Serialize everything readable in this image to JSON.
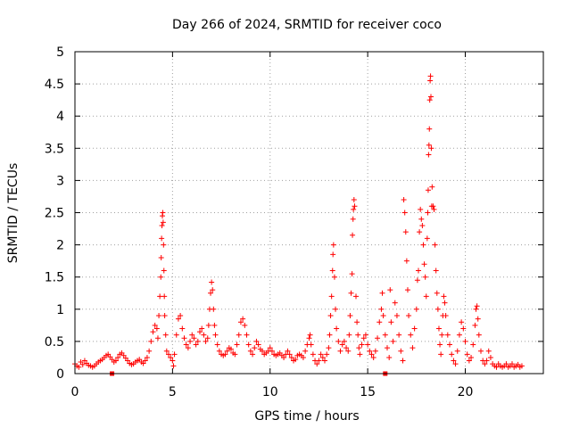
{
  "chart_data": {
    "type": "scatter",
    "title": "Day 266 of 2024, SRMTID for receiver coco",
    "xlabel": "GPS time / hours",
    "ylabel": "SRMTID / TECUs",
    "xlim": [
      0,
      24
    ],
    "ylim": [
      0,
      5
    ],
    "xticks": [
      0,
      5,
      10,
      15,
      20
    ],
    "xtick_labels": [
      "0",
      "5",
      "10",
      "15",
      "20"
    ],
    "yticks": [
      0,
      0.5,
      1,
      1.5,
      2,
      2.5,
      3,
      3.5,
      4,
      4.5,
      5
    ],
    "ytick_labels": [
      "0",
      "0.5",
      "1",
      "1.5",
      "2",
      "2.5",
      "3",
      "3.5",
      "4",
      "4.5",
      "5"
    ],
    "grid": true,
    "marker": "plus",
    "color": "#ff0000",
    "series": [
      {
        "name": "SRMTID",
        "points": [
          [
            0.0,
            0.15
          ],
          [
            0.1,
            0.12
          ],
          [
            0.2,
            0.1
          ],
          [
            0.3,
            0.18
          ],
          [
            0.4,
            0.14
          ],
          [
            0.5,
            0.2
          ],
          [
            0.6,
            0.16
          ],
          [
            0.7,
            0.13
          ],
          [
            0.8,
            0.12
          ],
          [
            0.9,
            0.1
          ],
          [
            1.0,
            0.12
          ],
          [
            1.1,
            0.15
          ],
          [
            1.2,
            0.18
          ],
          [
            1.3,
            0.2
          ],
          [
            1.4,
            0.22
          ],
          [
            1.5,
            0.25
          ],
          [
            1.6,
            0.28
          ],
          [
            1.7,
            0.3
          ],
          [
            1.8,
            0.26
          ],
          [
            1.9,
            0.22
          ],
          [
            2.0,
            0.18
          ],
          [
            2.1,
            0.2
          ],
          [
            2.2,
            0.25
          ],
          [
            2.3,
            0.3
          ],
          [
            2.4,
            0.32
          ],
          [
            2.5,
            0.28
          ],
          [
            2.6,
            0.24
          ],
          [
            2.7,
            0.2
          ],
          [
            2.8,
            0.16
          ],
          [
            2.9,
            0.14
          ],
          [
            3.0,
            0.15
          ],
          [
            3.1,
            0.18
          ],
          [
            3.2,
            0.2
          ],
          [
            3.3,
            0.22
          ],
          [
            3.4,
            0.18
          ],
          [
            3.5,
            0.16
          ],
          [
            3.6,
            0.2
          ],
          [
            3.7,
            0.25
          ],
          [
            3.8,
            0.35
          ],
          [
            3.9,
            0.5
          ],
          [
            4.0,
            0.65
          ],
          [
            4.1,
            0.75
          ],
          [
            4.2,
            0.7
          ],
          [
            4.25,
            0.55
          ],
          [
            4.3,
            0.9
          ],
          [
            4.35,
            1.2
          ],
          [
            4.4,
            1.5
          ],
          [
            4.42,
            1.8
          ],
          [
            4.44,
            2.1
          ],
          [
            4.46,
            2.3
          ],
          [
            4.48,
            2.45
          ],
          [
            4.5,
            2.5
          ],
          [
            4.52,
            2.35
          ],
          [
            4.54,
            2.0
          ],
          [
            4.56,
            1.6
          ],
          [
            4.58,
            1.2
          ],
          [
            4.6,
            0.9
          ],
          [
            4.65,
            0.6
          ],
          [
            4.7,
            0.35
          ],
          [
            4.8,
            0.3
          ],
          [
            4.9,
            0.25
          ],
          [
            5.0,
            0.2
          ],
          [
            5.05,
            0.12
          ],
          [
            5.1,
            0.3
          ],
          [
            5.2,
            0.6
          ],
          [
            5.3,
            0.85
          ],
          [
            5.4,
            0.9
          ],
          [
            5.5,
            0.7
          ],
          [
            5.6,
            0.55
          ],
          [
            5.7,
            0.45
          ],
          [
            5.8,
            0.4
          ],
          [
            5.9,
            0.5
          ],
          [
            6.0,
            0.6
          ],
          [
            6.1,
            0.55
          ],
          [
            6.2,
            0.45
          ],
          [
            6.3,
            0.5
          ],
          [
            6.4,
            0.65
          ],
          [
            6.5,
            0.7
          ],
          [
            6.6,
            0.6
          ],
          [
            6.7,
            0.5
          ],
          [
            6.8,
            0.55
          ],
          [
            6.85,
            0.75
          ],
          [
            6.9,
            1.0
          ],
          [
            6.95,
            1.25
          ],
          [
            7.0,
            1.42
          ],
          [
            7.05,
            1.3
          ],
          [
            7.1,
            1.0
          ],
          [
            7.15,
            0.75
          ],
          [
            7.2,
            0.6
          ],
          [
            7.3,
            0.45
          ],
          [
            7.4,
            0.35
          ],
          [
            7.5,
            0.3
          ],
          [
            7.6,
            0.28
          ],
          [
            7.7,
            0.3
          ],
          [
            7.8,
            0.35
          ],
          [
            7.9,
            0.4
          ],
          [
            8.0,
            0.38
          ],
          [
            8.1,
            0.32
          ],
          [
            8.2,
            0.3
          ],
          [
            8.3,
            0.45
          ],
          [
            8.4,
            0.6
          ],
          [
            8.5,
            0.8
          ],
          [
            8.6,
            0.85
          ],
          [
            8.7,
            0.75
          ],
          [
            8.8,
            0.6
          ],
          [
            8.9,
            0.45
          ],
          [
            9.0,
            0.35
          ],
          [
            9.1,
            0.3
          ],
          [
            9.2,
            0.4
          ],
          [
            9.3,
            0.5
          ],
          [
            9.4,
            0.45
          ],
          [
            9.5,
            0.38
          ],
          [
            9.6,
            0.35
          ],
          [
            9.7,
            0.3
          ],
          [
            9.8,
            0.32
          ],
          [
            9.9,
            0.35
          ],
          [
            10.0,
            0.4
          ],
          [
            10.1,
            0.35
          ],
          [
            10.2,
            0.3
          ],
          [
            10.3,
            0.28
          ],
          [
            10.4,
            0.3
          ],
          [
            10.5,
            0.32
          ],
          [
            10.6,
            0.28
          ],
          [
            10.7,
            0.25
          ],
          [
            10.8,
            0.3
          ],
          [
            10.9,
            0.35
          ],
          [
            11.0,
            0.3
          ],
          [
            11.1,
            0.25
          ],
          [
            11.2,
            0.2
          ],
          [
            11.3,
            0.22
          ],
          [
            11.4,
            0.28
          ],
          [
            11.5,
            0.3
          ],
          [
            11.6,
            0.28
          ],
          [
            11.7,
            0.25
          ],
          [
            11.8,
            0.35
          ],
          [
            11.9,
            0.45
          ],
          [
            12.0,
            0.55
          ],
          [
            12.05,
            0.6
          ],
          [
            12.1,
            0.45
          ],
          [
            12.2,
            0.3
          ],
          [
            12.3,
            0.2
          ],
          [
            12.4,
            0.15
          ],
          [
            12.5,
            0.2
          ],
          [
            12.6,
            0.3
          ],
          [
            12.7,
            0.25
          ],
          [
            12.8,
            0.2
          ],
          [
            12.9,
            0.3
          ],
          [
            13.0,
            0.4
          ],
          [
            13.05,
            0.6
          ],
          [
            13.1,
            0.9
          ],
          [
            13.15,
            1.2
          ],
          [
            13.2,
            1.6
          ],
          [
            13.22,
            1.85
          ],
          [
            13.25,
            2.0
          ],
          [
            13.3,
            1.5
          ],
          [
            13.35,
            1.0
          ],
          [
            13.4,
            0.7
          ],
          [
            13.5,
            0.5
          ],
          [
            13.6,
            0.35
          ],
          [
            13.7,
            0.45
          ],
          [
            13.8,
            0.5
          ],
          [
            13.9,
            0.4
          ],
          [
            14.0,
            0.35
          ],
          [
            14.05,
            0.6
          ],
          [
            14.1,
            0.9
          ],
          [
            14.15,
            1.25
          ],
          [
            14.2,
            1.55
          ],
          [
            14.22,
            2.15
          ],
          [
            14.25,
            2.4
          ],
          [
            14.27,
            2.55
          ],
          [
            14.3,
            2.7
          ],
          [
            14.33,
            2.6
          ],
          [
            14.4,
            1.2
          ],
          [
            14.45,
            0.8
          ],
          [
            14.5,
            0.6
          ],
          [
            14.55,
            0.4
          ],
          [
            14.6,
            0.3
          ],
          [
            14.7,
            0.45
          ],
          [
            14.8,
            0.55
          ],
          [
            14.9,
            0.6
          ],
          [
            15.0,
            0.45
          ],
          [
            15.1,
            0.35
          ],
          [
            15.2,
            0.3
          ],
          [
            15.3,
            0.25
          ],
          [
            15.4,
            0.35
          ],
          [
            15.5,
            0.55
          ],
          [
            15.6,
            0.8
          ],
          [
            15.7,
            1.0
          ],
          [
            15.75,
            1.25
          ],
          [
            15.8,
            0.9
          ],
          [
            15.9,
            0.6
          ],
          [
            16.0,
            0.4
          ],
          [
            16.1,
            0.25
          ],
          [
            16.15,
            1.3
          ],
          [
            16.2,
            0.8
          ],
          [
            16.3,
            0.5
          ],
          [
            16.4,
            1.1
          ],
          [
            16.5,
            0.9
          ],
          [
            16.6,
            0.6
          ],
          [
            16.7,
            0.35
          ],
          [
            16.8,
            0.2
          ],
          [
            16.85,
            2.7
          ],
          [
            16.9,
            2.5
          ],
          [
            16.95,
            2.2
          ],
          [
            17.0,
            1.75
          ],
          [
            17.05,
            1.3
          ],
          [
            17.1,
            0.9
          ],
          [
            17.2,
            0.6
          ],
          [
            17.3,
            0.4
          ],
          [
            17.4,
            0.7
          ],
          [
            17.5,
            1.0
          ],
          [
            17.55,
            1.45
          ],
          [
            17.6,
            1.6
          ],
          [
            17.65,
            2.2
          ],
          [
            17.7,
            2.55
          ],
          [
            17.75,
            2.4
          ],
          [
            17.8,
            2.3
          ],
          [
            17.85,
            2.0
          ],
          [
            17.9,
            1.7
          ],
          [
            17.95,
            1.5
          ],
          [
            18.0,
            1.2
          ],
          [
            18.05,
            2.1
          ],
          [
            18.08,
            2.5
          ],
          [
            18.1,
            2.85
          ],
          [
            18.12,
            3.4
          ],
          [
            18.14,
            3.55
          ],
          [
            18.16,
            3.8
          ],
          [
            18.18,
            4.25
          ],
          [
            18.2,
            4.55
          ],
          [
            18.22,
            4.62
          ],
          [
            18.24,
            4.3
          ],
          [
            18.26,
            3.5
          ],
          [
            18.28,
            2.6
          ],
          [
            18.3,
            2.9
          ],
          [
            18.35,
            2.6
          ],
          [
            18.4,
            2.55
          ],
          [
            18.45,
            2.0
          ],
          [
            18.5,
            1.6
          ],
          [
            18.55,
            1.25
          ],
          [
            18.6,
            1.0
          ],
          [
            18.65,
            0.7
          ],
          [
            18.7,
            0.45
          ],
          [
            18.75,
            0.3
          ],
          [
            18.8,
            0.6
          ],
          [
            18.85,
            0.9
          ],
          [
            18.9,
            1.2
          ],
          [
            18.95,
            1.1
          ],
          [
            19.0,
            0.9
          ],
          [
            19.1,
            0.6
          ],
          [
            19.2,
            0.45
          ],
          [
            19.3,
            0.3
          ],
          [
            19.4,
            0.2
          ],
          [
            19.5,
            0.15
          ],
          [
            19.6,
            0.35
          ],
          [
            19.7,
            0.6
          ],
          [
            19.8,
            0.8
          ],
          [
            19.9,
            0.7
          ],
          [
            20.0,
            0.5
          ],
          [
            20.1,
            0.3
          ],
          [
            20.2,
            0.2
          ],
          [
            20.3,
            0.25
          ],
          [
            20.4,
            0.45
          ],
          [
            20.5,
            0.75
          ],
          [
            20.55,
            1.0
          ],
          [
            20.6,
            1.05
          ],
          [
            20.65,
            0.85
          ],
          [
            20.7,
            0.6
          ],
          [
            20.8,
            0.35
          ],
          [
            20.9,
            0.2
          ],
          [
            21.0,
            0.15
          ],
          [
            21.1,
            0.2
          ],
          [
            21.2,
            0.35
          ],
          [
            21.3,
            0.25
          ],
          [
            21.4,
            0.15
          ],
          [
            21.5,
            0.12
          ],
          [
            21.6,
            0.1
          ],
          [
            21.7,
            0.15
          ],
          [
            21.8,
            0.12
          ],
          [
            21.9,
            0.1
          ],
          [
            22.0,
            0.12
          ],
          [
            22.1,
            0.15
          ],
          [
            22.2,
            0.1
          ],
          [
            22.3,
            0.12
          ],
          [
            22.4,
            0.15
          ],
          [
            22.5,
            0.1
          ],
          [
            22.6,
            0.12
          ],
          [
            22.7,
            0.14
          ],
          [
            22.8,
            0.1
          ],
          [
            22.9,
            0.12
          ]
        ]
      }
    ],
    "zero_markers": [
      1.9,
      15.9
    ]
  }
}
